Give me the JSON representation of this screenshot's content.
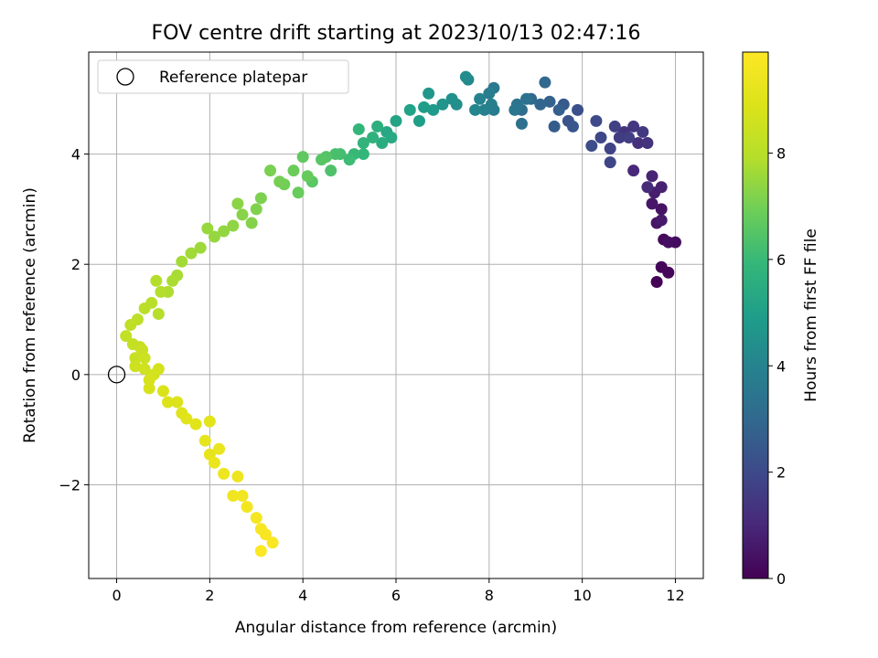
{
  "chart_data": {
    "type": "scatter",
    "title": "FOV centre drift starting at 2023/10/13 02:47:16",
    "xlabel": "Angular distance from reference (arcmin)",
    "ylabel": "Rotation from reference (arcmin)",
    "xlim": [
      -0.6,
      12.6
    ],
    "ylim": [
      -3.7,
      5.85
    ],
    "x_ticks": [
      0,
      2,
      4,
      6,
      8,
      10,
      12
    ],
    "y_ticks": [
      -2,
      0,
      2,
      4
    ],
    "x_tick_labels": [
      "0",
      "2",
      "4",
      "6",
      "8",
      "10",
      "12"
    ],
    "y_tick_labels": [
      "−2",
      "0",
      "2",
      "4"
    ],
    "grid": true,
    "legend": {
      "placement": "top-left",
      "entries": [
        {
          "label": "Reference platepar",
          "marker": "open-circle",
          "x": 0,
          "y": 0
        }
      ]
    },
    "colorbar": {
      "label": "Hours from first FF file",
      "colormap": "viridis",
      "range": [
        0,
        9.9
      ],
      "ticks": [
        0,
        2,
        4,
        6,
        8
      ],
      "tick_labels": [
        "0",
        "2",
        "4",
        "6",
        "8"
      ]
    },
    "series": [
      {
        "color_by": "hours",
        "points": [
          [
            11.6,
            1.68,
            0.05
          ],
          [
            11.7,
            1.95,
            0.1
          ],
          [
            11.85,
            1.85,
            0.15
          ],
          [
            11.75,
            2.45,
            0.2
          ],
          [
            12.0,
            2.4,
            0.3
          ],
          [
            11.85,
            2.4,
            0.35
          ],
          [
            11.7,
            3.0,
            0.45
          ],
          [
            11.6,
            2.75,
            0.5
          ],
          [
            11.5,
            3.1,
            0.55
          ],
          [
            11.7,
            2.8,
            0.6
          ],
          [
            11.55,
            3.3,
            0.7
          ],
          [
            11.7,
            3.4,
            0.8
          ],
          [
            11.5,
            3.6,
            0.9
          ],
          [
            11.1,
            3.7,
            1.0
          ],
          [
            11.4,
            3.4,
            1.1
          ],
          [
            11.2,
            4.2,
            1.2
          ],
          [
            11.4,
            4.2,
            1.3
          ],
          [
            10.9,
            4.4,
            1.35
          ],
          [
            11.1,
            4.5,
            1.4
          ],
          [
            11.3,
            4.4,
            1.5
          ],
          [
            10.8,
            4.3,
            1.6
          ],
          [
            11.0,
            4.3,
            1.65
          ],
          [
            10.7,
            4.5,
            1.7
          ],
          [
            10.6,
            4.1,
            1.8
          ],
          [
            10.6,
            3.85,
            1.9
          ],
          [
            10.4,
            4.3,
            1.95
          ],
          [
            10.3,
            4.6,
            2.0
          ],
          [
            10.2,
            4.15,
            2.1
          ],
          [
            9.9,
            4.8,
            2.2
          ],
          [
            9.7,
            4.6,
            2.3
          ],
          [
            9.8,
            4.5,
            2.4
          ],
          [
            9.6,
            4.9,
            2.5
          ],
          [
            9.4,
            4.5,
            2.6
          ],
          [
            9.5,
            4.8,
            2.7
          ],
          [
            9.3,
            4.95,
            2.8
          ],
          [
            9.1,
            4.9,
            2.9
          ],
          [
            9.2,
            5.3,
            3.0
          ],
          [
            8.9,
            5.0,
            3.1
          ],
          [
            8.7,
            4.8,
            3.2
          ],
          [
            8.7,
            4.55,
            3.3
          ],
          [
            8.8,
            5.0,
            3.35
          ],
          [
            8.6,
            4.9,
            3.4
          ],
          [
            8.55,
            4.8,
            3.5
          ],
          [
            8.1,
            5.2,
            3.6
          ],
          [
            8.1,
            4.8,
            3.7
          ],
          [
            8.0,
            5.1,
            3.8
          ],
          [
            8.05,
            4.9,
            3.85
          ],
          [
            7.9,
            4.8,
            3.9
          ],
          [
            7.8,
            5.0,
            4.0
          ],
          [
            7.7,
            4.8,
            4.1
          ],
          [
            7.55,
            5.35,
            4.2
          ],
          [
            7.5,
            5.4,
            4.3
          ],
          [
            7.3,
            4.9,
            4.4
          ],
          [
            7.2,
            5.0,
            4.5
          ],
          [
            7.0,
            4.9,
            4.6
          ],
          [
            6.7,
            5.1,
            4.7
          ],
          [
            6.8,
            4.8,
            4.8
          ],
          [
            6.6,
            4.85,
            4.9
          ],
          [
            6.5,
            4.6,
            5.0
          ],
          [
            6.3,
            4.8,
            5.1
          ],
          [
            6.0,
            4.6,
            5.2
          ],
          [
            5.8,
            4.4,
            5.3
          ],
          [
            5.9,
            4.3,
            5.4
          ],
          [
            5.7,
            4.2,
            5.5
          ],
          [
            5.6,
            4.5,
            5.6
          ],
          [
            5.5,
            4.3,
            5.7
          ],
          [
            5.3,
            4.2,
            5.8
          ],
          [
            5.2,
            4.45,
            5.85
          ],
          [
            5.3,
            4.0,
            5.9
          ],
          [
            5.1,
            4.0,
            6.0
          ],
          [
            5.0,
            3.9,
            6.1
          ],
          [
            4.8,
            4.0,
            6.2
          ],
          [
            4.7,
            4.0,
            6.3
          ],
          [
            4.6,
            3.7,
            6.4
          ],
          [
            4.5,
            3.95,
            6.5
          ],
          [
            4.4,
            3.9,
            6.55
          ],
          [
            4.2,
            3.5,
            6.6
          ],
          [
            4.0,
            3.95,
            6.7
          ],
          [
            4.1,
            3.6,
            6.8
          ],
          [
            3.9,
            3.3,
            6.85
          ],
          [
            3.8,
            3.7,
            6.9
          ],
          [
            3.6,
            3.45,
            7.0
          ],
          [
            3.5,
            3.5,
            7.05
          ],
          [
            3.3,
            3.7,
            7.1
          ],
          [
            3.1,
            3.2,
            7.15
          ],
          [
            3.0,
            3.0,
            7.2
          ],
          [
            2.9,
            2.75,
            7.25
          ],
          [
            2.7,
            2.9,
            7.3
          ],
          [
            2.6,
            3.1,
            7.35
          ],
          [
            2.5,
            2.7,
            7.4
          ],
          [
            2.3,
            2.6,
            7.45
          ],
          [
            2.1,
            2.5,
            7.5
          ],
          [
            1.95,
            2.65,
            7.55
          ],
          [
            1.8,
            2.3,
            7.6
          ],
          [
            1.6,
            2.2,
            7.65
          ],
          [
            1.4,
            2.05,
            7.7
          ],
          [
            1.3,
            1.8,
            7.75
          ],
          [
            1.2,
            1.7,
            7.8
          ],
          [
            1.1,
            1.5,
            7.85
          ],
          [
            0.95,
            1.5,
            7.9
          ],
          [
            0.85,
            1.7,
            7.95
          ],
          [
            0.9,
            1.1,
            8.0
          ],
          [
            0.75,
            1.3,
            8.05
          ],
          [
            0.6,
            1.2,
            8.1
          ],
          [
            0.45,
            1.0,
            8.15
          ],
          [
            0.3,
            0.9,
            8.2
          ],
          [
            0.2,
            0.7,
            8.25
          ],
          [
            0.35,
            0.55,
            8.3
          ],
          [
            0.5,
            0.5,
            8.35
          ],
          [
            0.4,
            0.3,
            8.4
          ],
          [
            0.55,
            0.45,
            8.45
          ],
          [
            0.6,
            0.3,
            8.5
          ],
          [
            0.4,
            0.15,
            8.55
          ],
          [
            0.6,
            0.1,
            8.6
          ],
          [
            0.8,
            0.0,
            8.65
          ],
          [
            0.9,
            0.1,
            8.7
          ],
          [
            0.7,
            -0.1,
            8.75
          ],
          [
            0.7,
            -0.25,
            8.8
          ],
          [
            1.0,
            -0.3,
            8.85
          ],
          [
            1.1,
            -0.5,
            8.9
          ],
          [
            1.3,
            -0.5,
            8.95
          ],
          [
            1.4,
            -0.7,
            9.0
          ],
          [
            1.5,
            -0.8,
            9.05
          ],
          [
            1.7,
            -0.9,
            9.1
          ],
          [
            2.0,
            -0.85,
            9.15
          ],
          [
            1.9,
            -1.2,
            9.2
          ],
          [
            2.0,
            -1.45,
            9.25
          ],
          [
            2.2,
            -1.35,
            9.3
          ],
          [
            2.1,
            -1.6,
            9.35
          ],
          [
            2.3,
            -1.8,
            9.4
          ],
          [
            2.6,
            -1.85,
            9.45
          ],
          [
            2.5,
            -2.2,
            9.5
          ],
          [
            2.7,
            -2.2,
            9.55
          ],
          [
            2.8,
            -2.4,
            9.6
          ],
          [
            3.0,
            -2.6,
            9.65
          ],
          [
            3.1,
            -2.8,
            9.7
          ],
          [
            3.2,
            -2.9,
            9.75
          ],
          [
            3.35,
            -3.05,
            9.8
          ],
          [
            3.1,
            -3.2,
            9.85
          ]
        ]
      }
    ]
  }
}
